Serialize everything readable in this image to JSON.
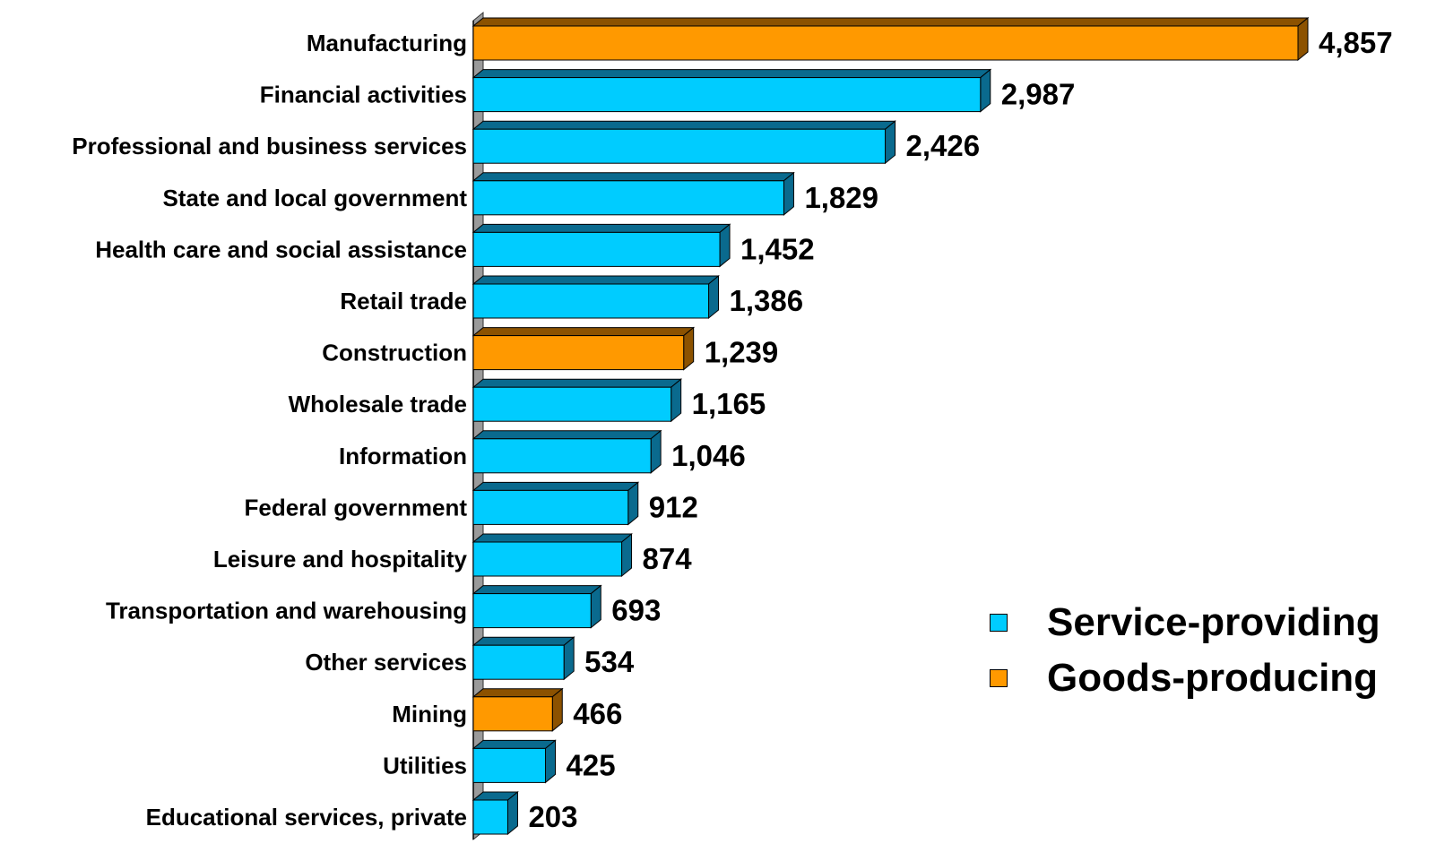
{
  "chart_data": {
    "type": "bar",
    "orientation": "horizontal",
    "title": "",
    "xlabel": "",
    "ylabel": "",
    "categories": [
      "Manufacturing",
      "Financial activities",
      "Professional and business services",
      "State and local government",
      "Health care and social assistance",
      "Retail trade",
      "Construction",
      "Wholesale trade",
      "Information",
      "Federal government",
      "Leisure and hospitality",
      "Transportation and warehousing",
      "Other services",
      "Mining",
      "Utilities",
      "Educational services, private"
    ],
    "values": [
      4857,
      2987,
      2426,
      1829,
      1452,
      1386,
      1239,
      1165,
      1046,
      912,
      874,
      693,
      534,
      466,
      425,
      203
    ],
    "value_labels": [
      "4,857",
      "2,987",
      "2,426",
      "1,829",
      "1,452",
      "1,386",
      "1,239",
      "1,165",
      "1,046",
      "912",
      "874",
      "693",
      "534",
      "466",
      "425",
      "203"
    ],
    "groups": [
      "Goods-producing",
      "Service-providing",
      "Service-providing",
      "Service-providing",
      "Service-providing",
      "Service-providing",
      "Goods-producing",
      "Service-providing",
      "Service-providing",
      "Service-providing",
      "Service-providing",
      "Service-providing",
      "Service-providing",
      "Goods-producing",
      "Service-providing",
      "Service-providing"
    ],
    "xlim": [
      0,
      4857
    ],
    "grid": false,
    "three_d": true,
    "legend_position": "right",
    "legend": [
      {
        "name": "Service-providing",
        "color": "#00CCFF",
        "side_color": "#0A6A8E"
      },
      {
        "name": "Goods-producing",
        "color": "#FF9900",
        "side_color": "#8C5200"
      }
    ]
  }
}
